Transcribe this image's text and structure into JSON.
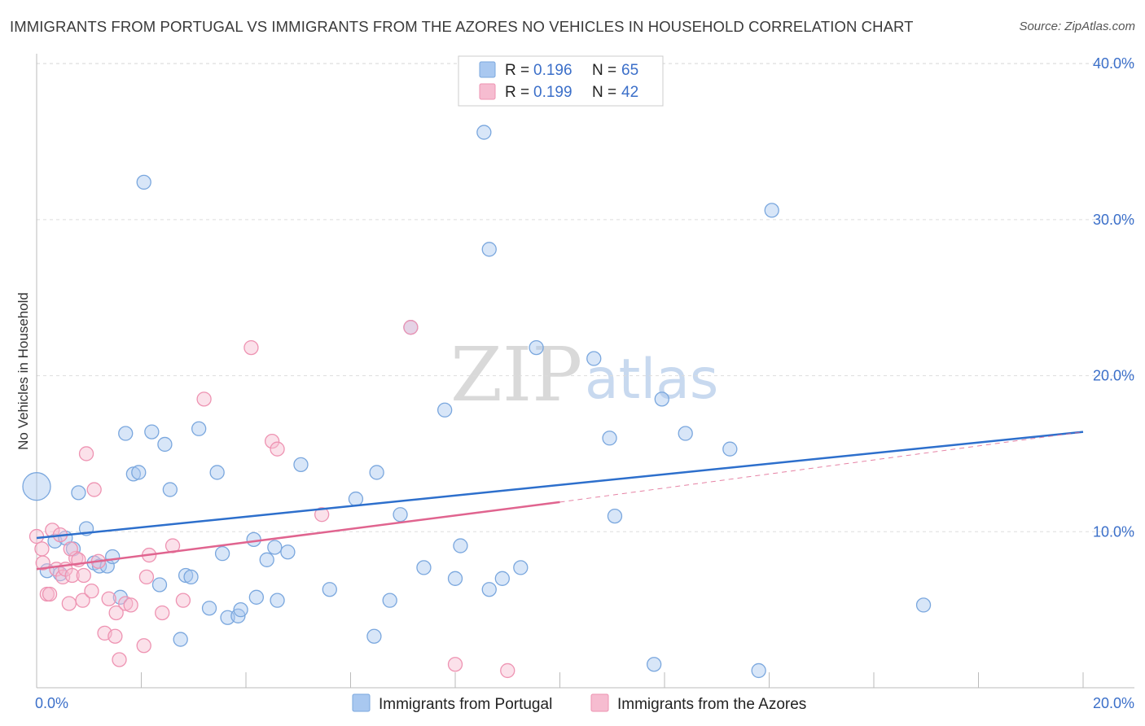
{
  "title": "IMMIGRANTS FROM PORTUGAL VS IMMIGRANTS FROM THE AZORES NO VEHICLES IN HOUSEHOLD CORRELATION CHART",
  "source": "Source: ZipAtlas.com",
  "watermark": {
    "zip": "ZIP",
    "atlas": "atlas"
  },
  "colors": {
    "blue_fill": "#a9c8f0",
    "blue_stroke": "#7aa7de",
    "blue_line": "#2d6fcc",
    "pink_fill": "#f6bcd0",
    "pink_stroke": "#ee93b2",
    "pink_line": "#e0648f",
    "axis_text": "#3b6fc9",
    "grid": "#dddddd"
  },
  "legend": {
    "rows": [
      {
        "r_label": "R = ",
        "r_value": "0.196",
        "n_label": "N = ",
        "n_value": "65"
      },
      {
        "r_label": "R = ",
        "r_value": "0.199",
        "n_label": "N = ",
        "n_value": "42"
      }
    ]
  },
  "chart_data": {
    "type": "scatter",
    "title": "IMMIGRANTS FROM PORTUGAL VS IMMIGRANTS FROM THE AZORES NO VEHICLES IN HOUSEHOLD CORRELATION CHART",
    "xlabel": "",
    "ylabel": "No Vehicles in Household",
    "xlim": [
      0,
      20
    ],
    "ylim": [
      0,
      42
    ],
    "x_tick_labels": [
      {
        "value": 0,
        "label": "0.0%"
      },
      {
        "value": 20,
        "label": "20.0%"
      }
    ],
    "y_tick_labels": [
      {
        "value": 10,
        "label": "10.0%"
      },
      {
        "value": 20,
        "label": "20.0%"
      },
      {
        "value": 30,
        "label": "30.0%"
      },
      {
        "value": 40,
        "label": "40.0%"
      }
    ],
    "x_minor_ticks": [
      2,
      4,
      6,
      8,
      10,
      12,
      14,
      16,
      18,
      20
    ],
    "grid": true,
    "legend_position": "bottom-center",
    "series": [
      {
        "name": "Immigrants from Portugal",
        "color": "blue",
        "R": 0.196,
        "N": 65,
        "trend": {
          "x0": 0,
          "y0": 9.6,
          "x1": 20,
          "y1": 16.4
        },
        "points": [
          {
            "x": 0.0,
            "y": 12.9,
            "big": true
          },
          {
            "x": 0.2,
            "y": 7.5
          },
          {
            "x": 0.35,
            "y": 9.4
          },
          {
            "x": 0.45,
            "y": 7.3
          },
          {
            "x": 0.55,
            "y": 9.6
          },
          {
            "x": 0.7,
            "y": 8.9
          },
          {
            "x": 0.8,
            "y": 12.5
          },
          {
            "x": 0.95,
            "y": 10.2
          },
          {
            "x": 1.1,
            "y": 8.0
          },
          {
            "x": 1.2,
            "y": 7.8
          },
          {
            "x": 1.35,
            "y": 7.8
          },
          {
            "x": 1.45,
            "y": 8.4
          },
          {
            "x": 1.6,
            "y": 5.8
          },
          {
            "x": 1.7,
            "y": 16.3
          },
          {
            "x": 1.85,
            "y": 13.7
          },
          {
            "x": 1.95,
            "y": 13.8
          },
          {
            "x": 2.05,
            "y": 32.4
          },
          {
            "x": 2.2,
            "y": 16.4
          },
          {
            "x": 2.35,
            "y": 6.6
          },
          {
            "x": 2.45,
            "y": 15.6
          },
          {
            "x": 2.55,
            "y": 12.7
          },
          {
            "x": 2.75,
            "y": 3.1
          },
          {
            "x": 2.85,
            "y": 7.2
          },
          {
            "x": 2.95,
            "y": 7.1
          },
          {
            "x": 3.1,
            "y": 16.6
          },
          {
            "x": 3.3,
            "y": 5.1
          },
          {
            "x": 3.45,
            "y": 13.8
          },
          {
            "x": 3.55,
            "y": 8.6
          },
          {
            "x": 3.65,
            "y": 4.5
          },
          {
            "x": 3.85,
            "y": 4.6
          },
          {
            "x": 3.9,
            "y": 5.0
          },
          {
            "x": 4.15,
            "y": 9.5
          },
          {
            "x": 4.2,
            "y": 5.8
          },
          {
            "x": 4.4,
            "y": 8.2
          },
          {
            "x": 4.55,
            "y": 9.0
          },
          {
            "x": 4.6,
            "y": 5.6
          },
          {
            "x": 4.8,
            "y": 8.7
          },
          {
            "x": 5.05,
            "y": 14.3
          },
          {
            "x": 5.6,
            "y": 6.3
          },
          {
            "x": 6.1,
            "y": 12.1
          },
          {
            "x": 6.45,
            "y": 3.3
          },
          {
            "x": 6.5,
            "y": 13.8
          },
          {
            "x": 6.75,
            "y": 5.6
          },
          {
            "x": 6.95,
            "y": 11.1
          },
          {
            "x": 7.15,
            "y": 23.1
          },
          {
            "x": 7.4,
            "y": 7.7
          },
          {
            "x": 7.8,
            "y": 17.8
          },
          {
            "x": 8.0,
            "y": 7.0
          },
          {
            "x": 8.1,
            "y": 9.1
          },
          {
            "x": 8.55,
            "y": 35.6
          },
          {
            "x": 8.65,
            "y": 28.1
          },
          {
            "x": 8.65,
            "y": 6.3
          },
          {
            "x": 8.9,
            "y": 7.0
          },
          {
            "x": 9.25,
            "y": 7.7
          },
          {
            "x": 9.55,
            "y": 21.8
          },
          {
            "x": 10.65,
            "y": 21.1
          },
          {
            "x": 10.95,
            "y": 16.0
          },
          {
            "x": 11.05,
            "y": 11.0
          },
          {
            "x": 11.8,
            "y": 1.5
          },
          {
            "x": 11.95,
            "y": 18.5
          },
          {
            "x": 12.4,
            "y": 16.3
          },
          {
            "x": 13.25,
            "y": 15.3
          },
          {
            "x": 13.8,
            "y": 1.1
          },
          {
            "x": 14.05,
            "y": 30.6
          },
          {
            "x": 16.95,
            "y": 5.3
          }
        ]
      },
      {
        "name": "Immigrants from the Azores",
        "color": "pink",
        "R": 0.199,
        "N": 42,
        "trend": {
          "x0": 0,
          "y0": 7.6,
          "x1": 10,
          "y1": 11.9
        },
        "trend_extension": {
          "x0": 10,
          "y0": 11.9,
          "x1": 20,
          "y1": 16.4
        },
        "points": [
          {
            "x": 0.0,
            "y": 9.7
          },
          {
            "x": 0.1,
            "y": 8.9
          },
          {
            "x": 0.12,
            "y": 8.0
          },
          {
            "x": 0.2,
            "y": 6.0
          },
          {
            "x": 0.25,
            "y": 6.0
          },
          {
            "x": 0.3,
            "y": 10.1
          },
          {
            "x": 0.38,
            "y": 7.6
          },
          {
            "x": 0.45,
            "y": 9.8
          },
          {
            "x": 0.5,
            "y": 7.1
          },
          {
            "x": 0.55,
            "y": 7.6
          },
          {
            "x": 0.62,
            "y": 5.4
          },
          {
            "x": 0.68,
            "y": 7.2
          },
          {
            "x": 0.75,
            "y": 8.3
          },
          {
            "x": 0.8,
            "y": 8.2
          },
          {
            "x": 0.88,
            "y": 5.6
          },
          {
            "x": 0.9,
            "y": 7.2
          },
          {
            "x": 0.95,
            "y": 15.0
          },
          {
            "x": 1.05,
            "y": 6.2
          },
          {
            "x": 1.1,
            "y": 12.7
          },
          {
            "x": 1.18,
            "y": 8.1
          },
          {
            "x": 1.3,
            "y": 3.5
          },
          {
            "x": 1.38,
            "y": 5.7
          },
          {
            "x": 1.5,
            "y": 3.3
          },
          {
            "x": 1.52,
            "y": 4.8
          },
          {
            "x": 1.58,
            "y": 1.8
          },
          {
            "x": 1.7,
            "y": 5.4
          },
          {
            "x": 1.8,
            "y": 5.3
          },
          {
            "x": 2.05,
            "y": 2.7
          },
          {
            "x": 2.1,
            "y": 7.1
          },
          {
            "x": 2.15,
            "y": 8.5
          },
          {
            "x": 2.4,
            "y": 4.8
          },
          {
            "x": 2.6,
            "y": 9.1
          },
          {
            "x": 2.8,
            "y": 5.6
          },
          {
            "x": 3.2,
            "y": 18.5
          },
          {
            "x": 4.1,
            "y": 21.8
          },
          {
            "x": 4.5,
            "y": 15.8
          },
          {
            "x": 4.6,
            "y": 15.3
          },
          {
            "x": 5.45,
            "y": 11.1
          },
          {
            "x": 7.15,
            "y": 23.1
          },
          {
            "x": 8.0,
            "y": 1.5
          },
          {
            "x": 9.0,
            "y": 1.1
          },
          {
            "x": 0.65,
            "y": 8.9
          }
        ]
      }
    ]
  }
}
